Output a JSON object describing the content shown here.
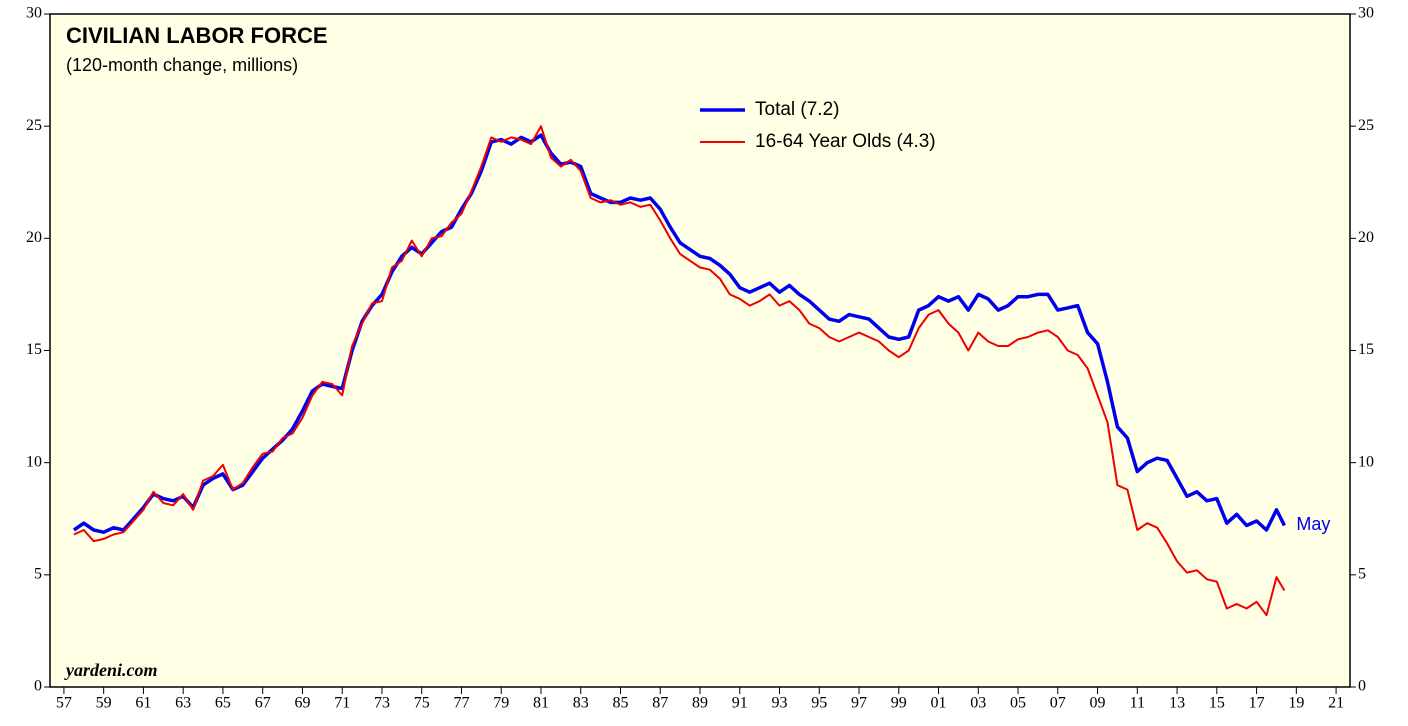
{
  "chart_data": {
    "type": "line",
    "title": "CIVILIAN LABOR FORCE",
    "subtitle": "(120-month change, millions)",
    "annotation": "May",
    "source": "yardeni.com",
    "x": [
      1957.5,
      1958,
      1958.5,
      1959,
      1959.5,
      1960,
      1960.5,
      1961,
      1961.5,
      1962,
      1962.5,
      1963,
      1963.5,
      1964,
      1964.5,
      1965,
      1965.5,
      1966,
      1966.5,
      1967,
      1967.5,
      1968,
      1968.5,
      1969,
      1969.5,
      1970,
      1970.5,
      1971,
      1971.5,
      1972,
      1972.5,
      1973,
      1973.5,
      1974,
      1974.5,
      1975,
      1975.5,
      1976,
      1976.5,
      1977,
      1977.5,
      1978,
      1978.5,
      1979,
      1979.5,
      1980,
      1980.5,
      1981,
      1981.5,
      1982,
      1982.5,
      1983,
      1983.5,
      1984,
      1984.5,
      1985,
      1985.5,
      1986,
      1986.5,
      1987,
      1987.5,
      1988,
      1988.5,
      1989,
      1989.5,
      1990,
      1990.5,
      1991,
      1991.5,
      1992,
      1992.5,
      1993,
      1993.5,
      1994,
      1994.5,
      1995,
      1995.5,
      1996,
      1996.5,
      1997,
      1997.5,
      1998,
      1998.5,
      1999,
      1999.5,
      2000,
      2000.5,
      2001,
      2001.5,
      2002,
      2002.5,
      2003,
      2003.5,
      2004,
      2004.5,
      2005,
      2005.5,
      2006,
      2006.5,
      2007,
      2007.5,
      2008,
      2008.5,
      2009,
      2009.5,
      2010,
      2010.5,
      2011,
      2011.5,
      2012,
      2012.5,
      2013,
      2013.5,
      2014,
      2014.5,
      2015,
      2015.5,
      2016,
      2016.5,
      2017,
      2017.5,
      2018,
      2018.4
    ],
    "series": [
      {
        "name": "Total (7.2)",
        "color": "#0000ee",
        "values": [
          7.0,
          7.3,
          7.0,
          6.9,
          7.1,
          7.0,
          7.5,
          8.0,
          8.6,
          8.4,
          8.3,
          8.5,
          8.0,
          9.0,
          9.3,
          9.5,
          8.8,
          9.0,
          9.6,
          10.2,
          10.6,
          11.0,
          11.5,
          12.3,
          13.2,
          13.5,
          13.4,
          13.3,
          15.0,
          16.3,
          17.0,
          17.5,
          18.5,
          19.2,
          19.6,
          19.3,
          19.8,
          20.3,
          20.5,
          21.3,
          22.0,
          23.0,
          24.3,
          24.4,
          24.2,
          24.5,
          24.3,
          24.6,
          23.8,
          23.3,
          23.4,
          23.2,
          22.0,
          21.8,
          21.6,
          21.6,
          21.8,
          21.7,
          21.8,
          21.3,
          20.5,
          19.8,
          19.5,
          19.2,
          19.1,
          18.8,
          18.4,
          17.8,
          17.6,
          17.8,
          18.0,
          17.6,
          17.9,
          17.5,
          17.2,
          16.8,
          16.4,
          16.3,
          16.6,
          16.5,
          16.4,
          16.0,
          15.6,
          15.5,
          15.6,
          16.8,
          17.0,
          17.4,
          17.2,
          17.4,
          16.8,
          17.5,
          17.3,
          16.8,
          17.0,
          17.4,
          17.4,
          17.5,
          17.5,
          16.8,
          16.9,
          17.0,
          15.8,
          15.3,
          13.6,
          11.6,
          11.1,
          9.6,
          10.0,
          10.2,
          10.1,
          9.3,
          8.5,
          8.7,
          8.3,
          8.4,
          7.3,
          7.7,
          7.2,
          7.4,
          7.0,
          7.9,
          7.2
        ]
      },
      {
        "name": "16-64 Year Olds (4.3)",
        "color": "#ee0000",
        "values": [
          6.8,
          7.0,
          6.5,
          6.6,
          6.8,
          6.9,
          7.4,
          7.9,
          8.7,
          8.2,
          8.1,
          8.6,
          7.9,
          9.2,
          9.4,
          9.9,
          8.8,
          9.1,
          9.8,
          10.4,
          10.5,
          11.1,
          11.3,
          12.0,
          13.0,
          13.6,
          13.5,
          13.0,
          15.2,
          16.2,
          17.1,
          17.2,
          18.7,
          19.0,
          19.9,
          19.2,
          20.0,
          20.1,
          20.7,
          21.1,
          22.1,
          23.2,
          24.5,
          24.3,
          24.5,
          24.4,
          24.2,
          25.0,
          23.6,
          23.2,
          23.5,
          23.0,
          21.8,
          21.6,
          21.7,
          21.5,
          21.6,
          21.4,
          21.5,
          20.8,
          20.0,
          19.3,
          19.0,
          18.7,
          18.6,
          18.2,
          17.5,
          17.3,
          17.0,
          17.2,
          17.5,
          17.0,
          17.2,
          16.8,
          16.2,
          16.0,
          15.6,
          15.4,
          15.6,
          15.8,
          15.6,
          15.4,
          15.0,
          14.7,
          15.0,
          16.0,
          16.6,
          16.8,
          16.2,
          15.8,
          15.0,
          15.8,
          15.4,
          15.2,
          15.2,
          15.5,
          15.6,
          15.8,
          15.9,
          15.6,
          15.0,
          14.8,
          14.2,
          13.0,
          11.8,
          9.0,
          8.8,
          7.0,
          7.3,
          7.1,
          6.4,
          5.6,
          5.1,
          5.2,
          4.8,
          4.7,
          3.5,
          3.7,
          3.5,
          3.8,
          3.2,
          4.9,
          4.3
        ]
      }
    ],
    "xlim": [
      1956.3,
      2021.7
    ],
    "xticks": [
      {
        "value": 1957,
        "label": "57"
      },
      {
        "value": 1959,
        "label": "59"
      },
      {
        "value": 1961,
        "label": "61"
      },
      {
        "value": 1963,
        "label": "63"
      },
      {
        "value": 1965,
        "label": "65"
      },
      {
        "value": 1967,
        "label": "67"
      },
      {
        "value": 1969,
        "label": "69"
      },
      {
        "value": 1971,
        "label": "71"
      },
      {
        "value": 1973,
        "label": "73"
      },
      {
        "value": 1975,
        "label": "75"
      },
      {
        "value": 1977,
        "label": "77"
      },
      {
        "value": 1979,
        "label": "79"
      },
      {
        "value": 1981,
        "label": "81"
      },
      {
        "value": 1983,
        "label": "83"
      },
      {
        "value": 1985,
        "label": "85"
      },
      {
        "value": 1987,
        "label": "87"
      },
      {
        "value": 1989,
        "label": "89"
      },
      {
        "value": 1991,
        "label": "91"
      },
      {
        "value": 1993,
        "label": "93"
      },
      {
        "value": 1995,
        "label": "95"
      },
      {
        "value": 1997,
        "label": "97"
      },
      {
        "value": 1999,
        "label": "99"
      },
      {
        "value": 2001,
        "label": "01"
      },
      {
        "value": 2003,
        "label": "03"
      },
      {
        "value": 2005,
        "label": "05"
      },
      {
        "value": 2007,
        "label": "07"
      },
      {
        "value": 2009,
        "label": "09"
      },
      {
        "value": 2011,
        "label": "11"
      },
      {
        "value": 2013,
        "label": "13"
      },
      {
        "value": 2015,
        "label": "15"
      },
      {
        "value": 2017,
        "label": "17"
      },
      {
        "value": 2019,
        "label": "19"
      },
      {
        "value": 2021,
        "label": "21"
      }
    ],
    "ylim": [
      0,
      30
    ],
    "yticks": [
      0,
      5,
      10,
      15,
      20,
      25,
      30
    ],
    "legend": "top"
  }
}
